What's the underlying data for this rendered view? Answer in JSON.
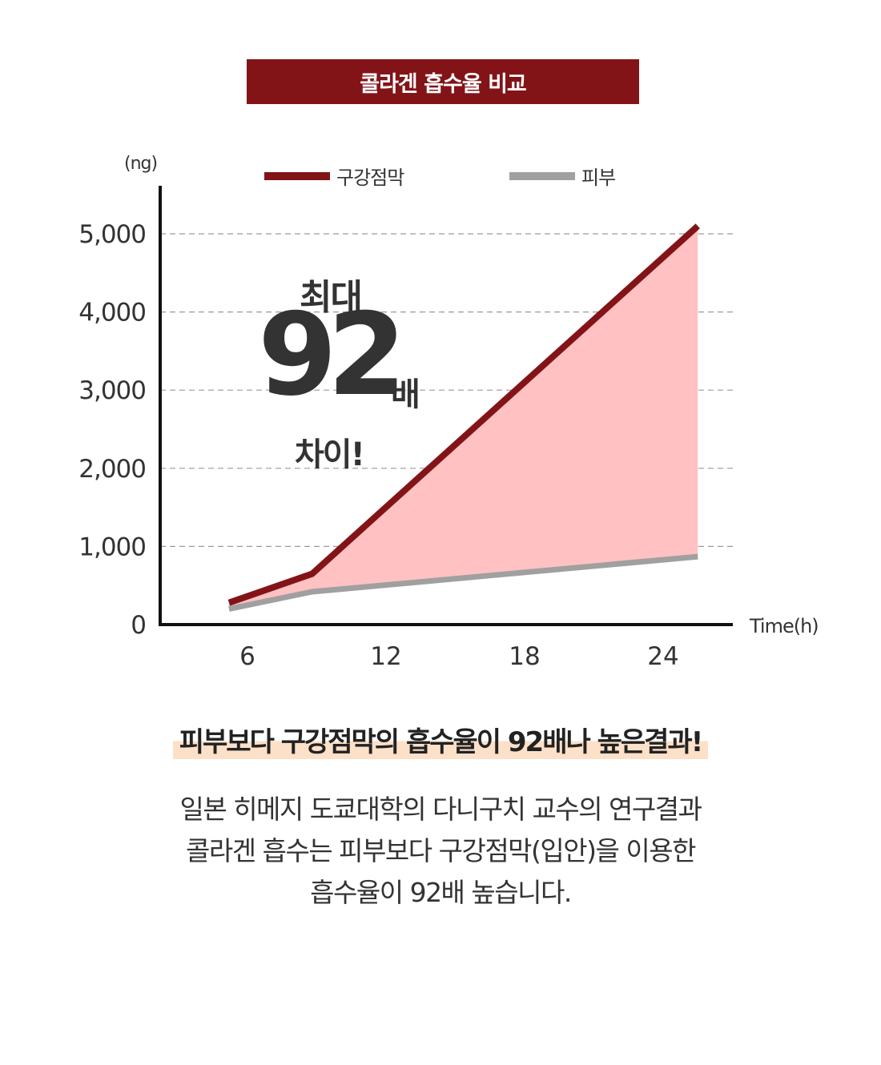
{
  "header": {
    "title": "콜라겐 흡수율 비교"
  },
  "callout": {
    "top": "최대",
    "number": "92",
    "unit": "배",
    "bottom": "차이!"
  },
  "headline": "피부보다 구강점막의 흡수율이 92배나 높은결과!",
  "description": [
    "일본 히메지 도쿄대학의 다니구치 교수의 연구결과",
    "콜라겐 흡수는 피부보다 구강점막(입안)을 이용한",
    "흡수율이 92배 높습니다."
  ],
  "chart_data": {
    "type": "line",
    "title": "콜라겐 흡수율 비교",
    "ylabel": "(ng)",
    "xlabel": "Time(h)",
    "xlim": [
      3,
      28
    ],
    "ylim": [
      0,
      5000
    ],
    "x_ticks": [
      6,
      12,
      18,
      24
    ],
    "x_tick_labels": [
      "6",
      "12",
      "18",
      "24"
    ],
    "y_ticks": [
      0,
      1000,
      2000,
      3000,
      4000,
      5000
    ],
    "y_tick_labels": [
      "0",
      "1,000",
      "2,000",
      "3,000",
      "4,000",
      "5,000"
    ],
    "grid": "dashed-horizontal",
    "legend_position": "top",
    "fill_between_color": "#ffc1c2",
    "series": [
      {
        "name": "구강점막",
        "color": "#821418",
        "x": [
          5.2,
          8.8,
          25.5
        ],
        "y": [
          280,
          650,
          5100
        ]
      },
      {
        "name": "피부",
        "color": "#a0a0a0",
        "x": [
          5.2,
          8.8,
          25.5
        ],
        "y": [
          200,
          420,
          870
        ]
      }
    ]
  }
}
